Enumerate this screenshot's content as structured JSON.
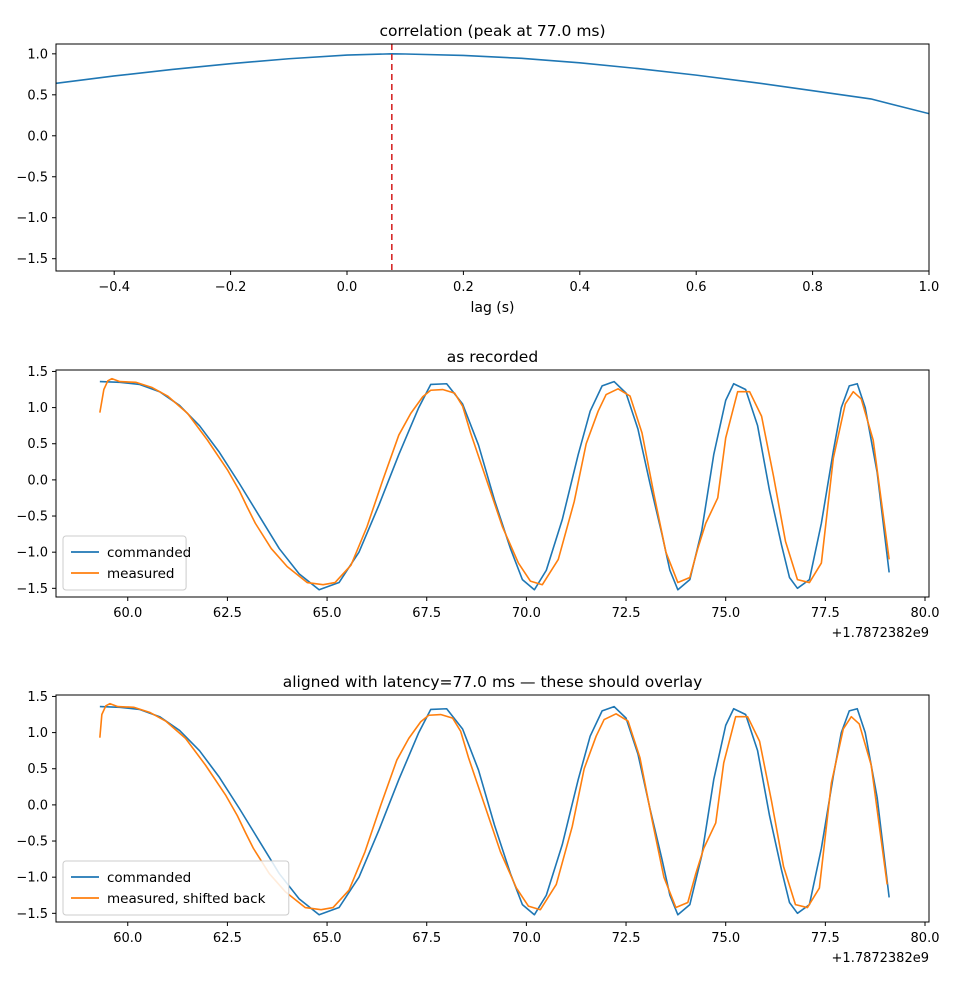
{
  "chart_data": [
    {
      "type": "line",
      "title": "correlation (peak at 77.0 ms)",
      "xlabel": "lag (s)",
      "ylabel": "",
      "xlim": [
        -0.5,
        1.0
      ],
      "ylim": [
        -1.65,
        1.12
      ],
      "xticks": [
        -0.4,
        -0.2,
        0.0,
        0.2,
        0.4,
        0.6,
        0.8,
        1.0
      ],
      "xtick_labels": [
        "−0.4",
        "−0.2",
        "0.0",
        "0.2",
        "0.4",
        "0.6",
        "0.8",
        "1.0"
      ],
      "yticks": [
        1.0,
        0.5,
        0.0,
        -0.5,
        -1.0,
        -1.5
      ],
      "ytick_labels": [
        "1.0",
        "0.5",
        "0.0",
        "−0.5",
        "−1.0",
        "−1.5"
      ],
      "peak_lag": 0.077,
      "series": [
        {
          "color": "#1f77b4",
          "x": [
            -0.5,
            -0.4,
            -0.3,
            -0.2,
            -0.1,
            0.0,
            0.077,
            0.1,
            0.2,
            0.3,
            0.4,
            0.5,
            0.6,
            0.7,
            0.8,
            0.9,
            1.0
          ],
          "y": [
            0.64,
            0.73,
            0.81,
            0.88,
            0.94,
            0.985,
            1.0,
            0.998,
            0.98,
            0.945,
            0.89,
            0.82,
            0.74,
            0.65,
            0.55,
            0.45,
            0.27
          ]
        }
      ],
      "annotations": [
        {
          "type": "vline",
          "x": 0.077,
          "color": "#d62728",
          "style": "dashed"
        }
      ],
      "grid": false
    },
    {
      "type": "line",
      "title": "as recorded",
      "xlabel": "",
      "ylabel": "",
      "xlim": [
        58.2,
        80.1
      ],
      "ylim": [
        -1.62,
        1.52
      ],
      "xticks": [
        60.0,
        62.5,
        65.0,
        67.5,
        70.0,
        72.5,
        75.0,
        77.5,
        80.0
      ],
      "xtick_labels": [
        "60.0",
        "62.5",
        "65.0",
        "67.5",
        "70.0",
        "72.5",
        "75.0",
        "77.5",
        "80.0"
      ],
      "x_offset_label": "+1.7872382e9",
      "yticks": [
        1.5,
        1.0,
        0.5,
        0.0,
        -0.5,
        -1.0,
        -1.5
      ],
      "ytick_labels": [
        "1.5",
        "1.0",
        "0.5",
        "0.0",
        "−0.5",
        "−1.0",
        "−1.5"
      ],
      "legend_position": "lower-left",
      "series": [
        {
          "name": "commanded",
          "color": "#1f77b4",
          "x": [
            59.3,
            59.8,
            60.3,
            60.8,
            61.3,
            61.8,
            62.3,
            62.8,
            63.3,
            63.8,
            64.3,
            64.8,
            65.3,
            65.8,
            66.3,
            66.8,
            67.3,
            67.6,
            68.0,
            68.4,
            68.8,
            69.2,
            69.6,
            69.9,
            70.2,
            70.5,
            70.9,
            71.3,
            71.6,
            71.9,
            72.2,
            72.5,
            72.8,
            73.1,
            73.4,
            73.6,
            73.8,
            74.1,
            74.4,
            74.7,
            75.0,
            75.2,
            75.5,
            75.8,
            76.1,
            76.4,
            76.6,
            76.8,
            77.1,
            77.4,
            77.7,
            77.9,
            78.1,
            78.3,
            78.5,
            78.8,
            79.1
          ],
          "y": [
            1.36,
            1.35,
            1.32,
            1.22,
            1.03,
            0.75,
            0.38,
            -0.05,
            -0.5,
            -0.95,
            -1.3,
            -1.52,
            -1.42,
            -1.0,
            -0.35,
            0.35,
            1.0,
            1.32,
            1.33,
            1.05,
            0.48,
            -0.28,
            -0.95,
            -1.38,
            -1.52,
            -1.25,
            -0.55,
            0.35,
            0.95,
            1.3,
            1.36,
            1.2,
            0.7,
            -0.05,
            -0.75,
            -1.25,
            -1.52,
            -1.38,
            -0.7,
            0.35,
            1.1,
            1.33,
            1.25,
            0.75,
            -0.15,
            -0.9,
            -1.35,
            -1.5,
            -1.38,
            -0.6,
            0.4,
            1.0,
            1.3,
            1.33,
            1.0,
            0.1,
            -1.28
          ]
        },
        {
          "name": "measured",
          "color": "#ff7f0e",
          "x": [
            59.3,
            59.4,
            59.5,
            59.6,
            59.8,
            60.2,
            60.6,
            61.0,
            61.5,
            62.0,
            62.5,
            62.8,
            63.0,
            63.2,
            63.6,
            64.0,
            64.5,
            64.9,
            65.2,
            65.6,
            66.0,
            66.4,
            66.8,
            67.1,
            67.4,
            67.6,
            67.9,
            68.2,
            68.4,
            68.6,
            69.0,
            69.4,
            69.8,
            70.1,
            70.4,
            70.8,
            71.2,
            71.5,
            71.8,
            72.0,
            72.3,
            72.6,
            72.9,
            73.2,
            73.5,
            73.8,
            74.1,
            74.3,
            74.5,
            74.8,
            75.0,
            75.3,
            75.6,
            75.9,
            76.2,
            76.5,
            76.8,
            77.1,
            77.4,
            77.7,
            78.0,
            78.2,
            78.4,
            78.7,
            79.1
          ],
          "y": [
            0.93,
            1.25,
            1.37,
            1.4,
            1.36,
            1.35,
            1.28,
            1.16,
            0.92,
            0.55,
            0.14,
            -0.15,
            -0.38,
            -0.6,
            -0.95,
            -1.2,
            -1.42,
            -1.45,
            -1.42,
            -1.18,
            -0.65,
            0.0,
            0.62,
            0.92,
            1.15,
            1.24,
            1.25,
            1.2,
            1.02,
            0.65,
            0.0,
            -0.65,
            -1.15,
            -1.4,
            -1.45,
            -1.1,
            -0.3,
            0.5,
            0.95,
            1.18,
            1.26,
            1.16,
            0.65,
            -0.2,
            -1.0,
            -1.42,
            -1.35,
            -0.95,
            -0.6,
            -0.25,
            0.58,
            1.22,
            1.22,
            0.88,
            0.05,
            -0.85,
            -1.38,
            -1.42,
            -1.15,
            0.3,
            1.05,
            1.22,
            1.12,
            0.55,
            -1.1
          ]
        }
      ],
      "grid": false
    },
    {
      "type": "line",
      "title": "aligned with latency=77.0 ms — these should overlay",
      "xlabel": "",
      "ylabel": "",
      "xlim": [
        58.2,
        80.1
      ],
      "ylim": [
        -1.62,
        1.52
      ],
      "xticks": [
        60.0,
        62.5,
        65.0,
        67.5,
        70.0,
        72.5,
        75.0,
        77.5,
        80.0
      ],
      "xtick_labels": [
        "60.0",
        "62.5",
        "65.0",
        "67.5",
        "70.0",
        "72.5",
        "75.0",
        "77.5",
        "80.0"
      ],
      "x_offset_label": "+1.7872382e9",
      "yticks": [
        1.5,
        1.0,
        0.5,
        0.0,
        -0.5,
        -1.0,
        -1.5
      ],
      "ytick_labels": [
        "1.5",
        "1.0",
        "0.5",
        "0.0",
        "−0.5",
        "−1.0",
        "−1.5"
      ],
      "legend_position": "lower-left",
      "series": [
        {
          "name": "commanded",
          "color": "#1f77b4",
          "x": [
            59.3,
            59.8,
            60.3,
            60.8,
            61.3,
            61.8,
            62.3,
            62.8,
            63.3,
            63.8,
            64.3,
            64.8,
            65.3,
            65.8,
            66.3,
            66.8,
            67.3,
            67.6,
            68.0,
            68.4,
            68.8,
            69.2,
            69.6,
            69.9,
            70.2,
            70.5,
            70.9,
            71.3,
            71.6,
            71.9,
            72.2,
            72.5,
            72.8,
            73.1,
            73.4,
            73.6,
            73.8,
            74.1,
            74.4,
            74.7,
            75.0,
            75.2,
            75.5,
            75.8,
            76.1,
            76.4,
            76.6,
            76.8,
            77.1,
            77.4,
            77.7,
            77.9,
            78.1,
            78.3,
            78.5,
            78.8,
            79.1
          ],
          "y": [
            1.36,
            1.35,
            1.32,
            1.22,
            1.03,
            0.75,
            0.38,
            -0.05,
            -0.5,
            -0.95,
            -1.3,
            -1.52,
            -1.42,
            -1.0,
            -0.35,
            0.35,
            1.0,
            1.32,
            1.33,
            1.05,
            0.48,
            -0.28,
            -0.95,
            -1.38,
            -1.52,
            -1.25,
            -0.55,
            0.35,
            0.95,
            1.3,
            1.36,
            1.2,
            0.7,
            -0.05,
            -0.75,
            -1.25,
            -1.52,
            -1.38,
            -0.7,
            0.35,
            1.1,
            1.33,
            1.25,
            0.75,
            -0.15,
            -0.9,
            -1.35,
            -1.5,
            -1.38,
            -0.6,
            0.4,
            1.0,
            1.3,
            1.33,
            1.0,
            0.1,
            -1.28
          ]
        },
        {
          "name": "measured, shifted back",
          "color": "#ff7f0e",
          "x": [
            59.3,
            59.35,
            59.45,
            59.55,
            59.75,
            60.15,
            60.55,
            60.95,
            61.45,
            61.95,
            62.45,
            62.75,
            62.95,
            63.15,
            63.55,
            63.95,
            64.45,
            64.85,
            65.15,
            65.55,
            65.95,
            66.35,
            66.75,
            67.05,
            67.35,
            67.55,
            67.85,
            68.15,
            68.35,
            68.55,
            68.95,
            69.35,
            69.75,
            70.05,
            70.35,
            70.75,
            71.15,
            71.45,
            71.75,
            71.95,
            72.25,
            72.55,
            72.85,
            73.15,
            73.45,
            73.75,
            74.05,
            74.25,
            74.45,
            74.75,
            74.95,
            75.25,
            75.55,
            75.85,
            76.15,
            76.45,
            76.75,
            77.05,
            77.35,
            77.65,
            77.95,
            78.15,
            78.35,
            78.65,
            79.05
          ],
          "y": [
            0.93,
            1.25,
            1.37,
            1.4,
            1.36,
            1.35,
            1.28,
            1.16,
            0.92,
            0.55,
            0.14,
            -0.15,
            -0.38,
            -0.6,
            -0.95,
            -1.2,
            -1.42,
            -1.45,
            -1.42,
            -1.18,
            -0.65,
            0.0,
            0.62,
            0.92,
            1.15,
            1.24,
            1.25,
            1.2,
            1.02,
            0.65,
            0.0,
            -0.65,
            -1.15,
            -1.4,
            -1.45,
            -1.1,
            -0.3,
            0.5,
            0.95,
            1.18,
            1.26,
            1.16,
            0.65,
            -0.2,
            -1.0,
            -1.42,
            -1.35,
            -0.95,
            -0.6,
            -0.25,
            0.58,
            1.22,
            1.22,
            0.88,
            0.05,
            -0.85,
            -1.38,
            -1.42,
            -1.15,
            0.3,
            1.05,
            1.22,
            1.12,
            0.55,
            -1.1
          ]
        }
      ],
      "grid": false
    }
  ]
}
